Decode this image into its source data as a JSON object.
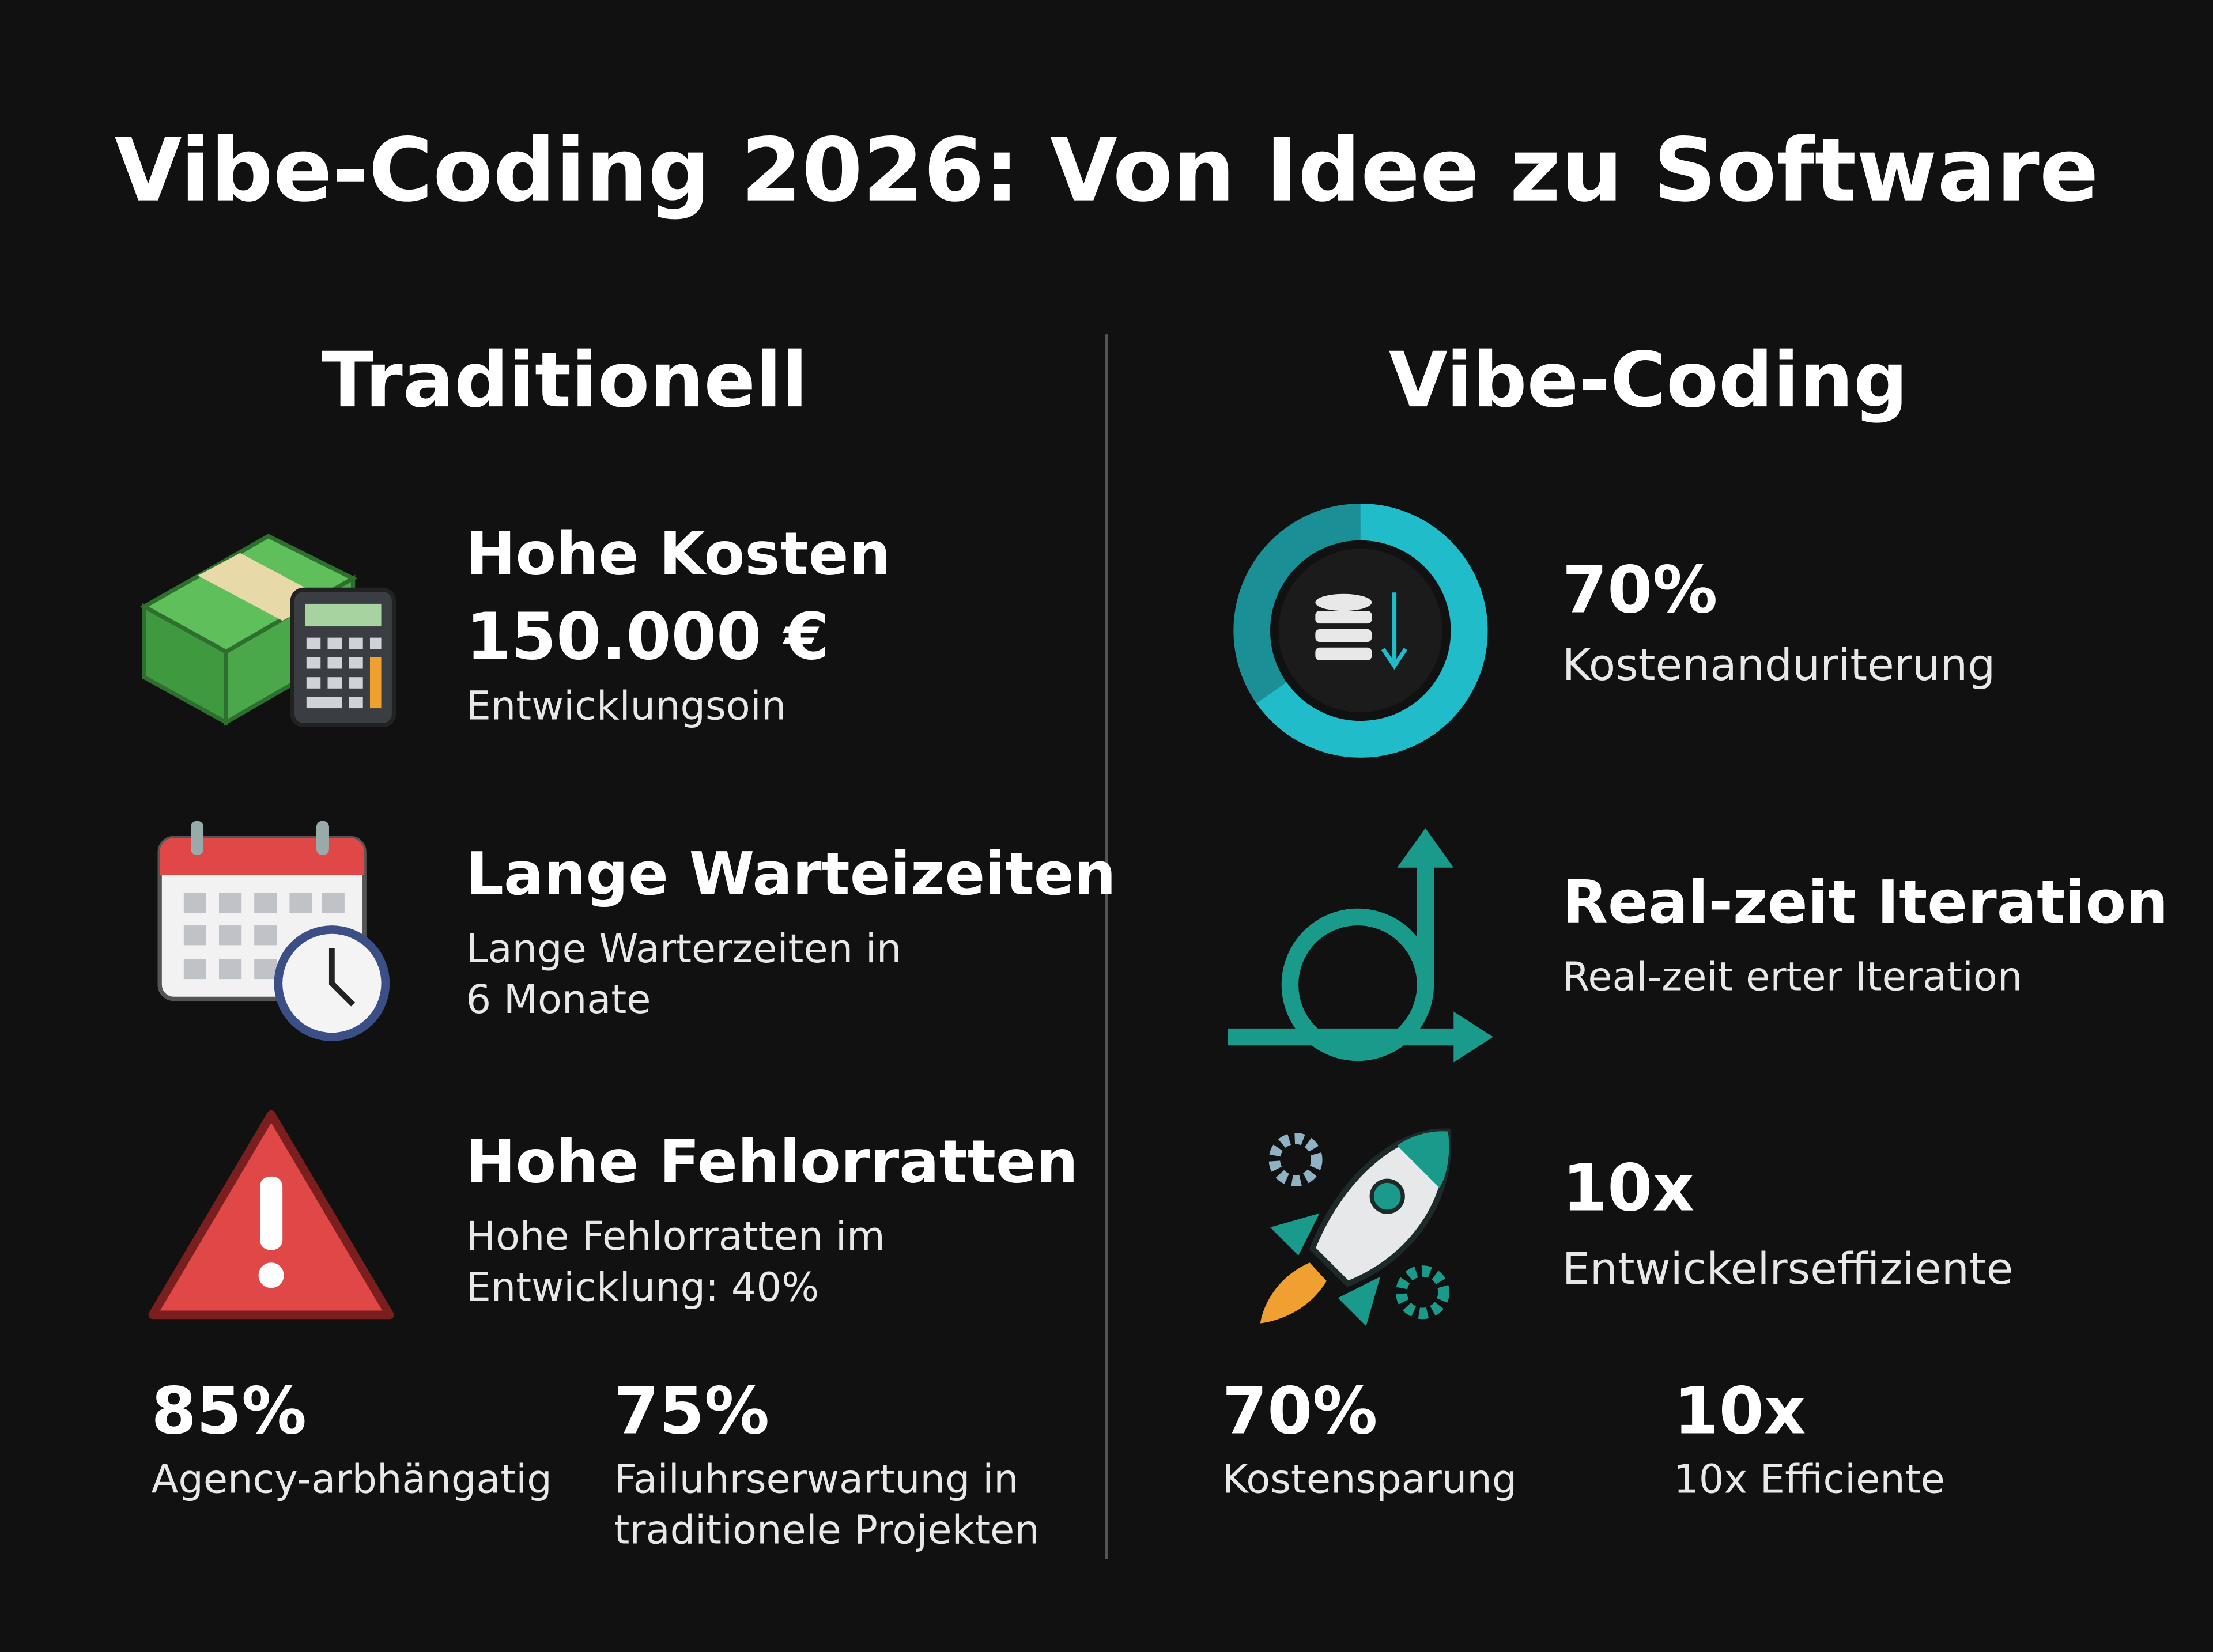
{
  "title": "Vibe-Coding 2026: Von Idee zu Software",
  "left": {
    "heading": "Traditionell",
    "items": [
      {
        "title": "Hohe Kosten",
        "value": "150.000 €",
        "lines": [
          "Entwicklungsoin"
        ]
      },
      {
        "title": "Lange Warteizeiten",
        "lines": [
          "Lange Warterzeiten in",
          "6 Monate"
        ]
      },
      {
        "title": "Hohe Fehlorratten",
        "lines": [
          "Hohe Fehlorratten im",
          "Entwicklung: 40%"
        ]
      }
    ],
    "stats": [
      {
        "value": "85%",
        "lines": [
          "Agency-arbhängatig"
        ]
      },
      {
        "value": "75%",
        "lines": [
          "Failuhrserwartung in",
          "traditionele Projekten"
        ]
      }
    ]
  },
  "right": {
    "heading": "Vibe-Coding",
    "items": [
      {
        "title": "70%",
        "lines": [
          "Kostenanduriterung"
        ]
      },
      {
        "title": "Real-zeit Iteration",
        "lines": [
          "Real-zeit erter Iteration"
        ]
      },
      {
        "title": "10x",
        "lines": [
          "Entwickelrseffiziente"
        ]
      }
    ],
    "stats": [
      {
        "value": "70%",
        "lines": [
          "Kostensparung"
        ]
      },
      {
        "value": "10x",
        "lines": [
          "10x Efficiente"
        ]
      }
    ]
  }
}
